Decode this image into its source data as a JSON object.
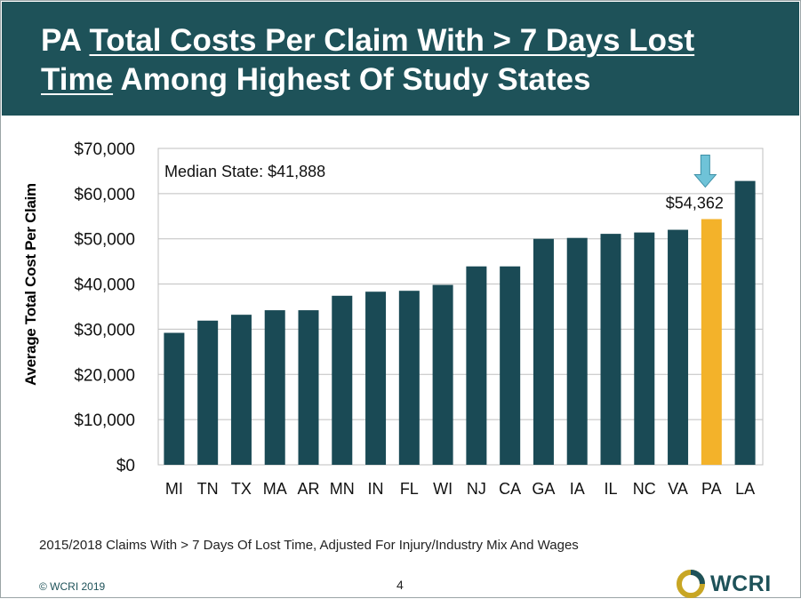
{
  "header": {
    "title_part1": "PA ",
    "title_underlined1": "Total Costs Per Claim With > 7 Days Lost",
    "title_underlined2": "Time",
    "title_part2": " Among Highest Of Study States"
  },
  "annotation": "Median State: $41,888",
  "footnote": "2015/2018 Claims With > 7 Days Of Lost Time, Adjusted For Injury/Industry Mix And Wages",
  "copyright": "© WCRI 2019",
  "page_number": "4",
  "logo_text": "WCRI",
  "colors": {
    "header_bg": "#1e5259",
    "bar": "#1a4a55",
    "highlight_bar": "#f3b22a",
    "arrow": "#6fc3d8",
    "logo_gold": "#c8a624"
  },
  "chart_data": {
    "type": "bar",
    "title": "",
    "xlabel": "",
    "ylabel": "Average Total Cost Per Claim",
    "categories": [
      "MI",
      "TN",
      "TX",
      "MA",
      "AR",
      "MN",
      "IN",
      "FL",
      "WI",
      "NJ",
      "CA",
      "GA",
      "IA",
      "IL",
      "NC",
      "VA",
      "PA",
      "LA"
    ],
    "values": [
      29200,
      31900,
      33200,
      34200,
      34200,
      37400,
      38300,
      38500,
      39800,
      43900,
      43900,
      50000,
      50200,
      51100,
      51400,
      52000,
      54362,
      62800
    ],
    "highlight": "PA",
    "highlight_label": "$54,362",
    "ylim": [
      0,
      70000
    ],
    "yticks": [
      "$0",
      "$10,000",
      "$20,000",
      "$30,000",
      "$40,000",
      "$50,000",
      "$60,000",
      "$70,000"
    ],
    "grid": true,
    "legend": "none"
  }
}
